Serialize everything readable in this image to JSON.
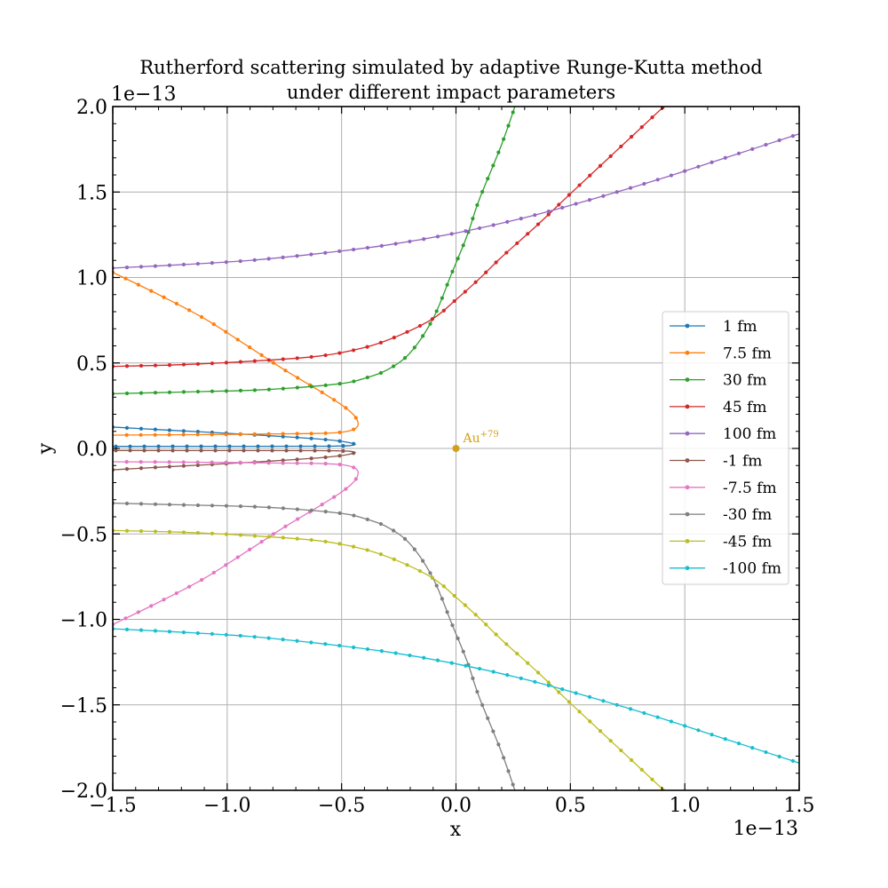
{
  "chart_data": {
    "type": "line",
    "title_lines": [
      "Rutherford scattering simulated by adaptive Runge-Kutta method",
      "under different impact parameters"
    ],
    "xlabel": "x",
    "ylabel": "y",
    "x_offset_text": "1e−13",
    "y_offset_text": "1e−13",
    "xlim": [
      -1.5,
      1.5
    ],
    "ylim": [
      -2.0,
      2.0
    ],
    "xticks": [
      -1.5,
      -1.0,
      -0.5,
      0.0,
      0.5,
      1.0,
      1.5
    ],
    "xtick_labels": [
      "−1.5",
      "−1.0",
      "−0.5",
      "0.0",
      "0.5",
      "1.0",
      "1.5"
    ],
    "yticks": [
      -2.0,
      -1.5,
      -1.0,
      -0.5,
      0.0,
      0.5,
      1.0,
      1.5,
      2.0
    ],
    "ytick_labels": [
      "−2.0",
      "−1.5",
      "−1.0",
      "−0.5",
      "0.0",
      "0.5",
      "1.0",
      "1.5",
      "2.0"
    ],
    "grid": true,
    "legend_position": "center-right",
    "nucleus": {
      "x": 0.0,
      "y": 0.0,
      "label": "Au",
      "superscript": "+79",
      "color": "#d4a017"
    },
    "series": [
      {
        "name": "1 fm",
        "color": "#1f77b4",
        "points": [
          [
            -1.5,
            0.125
          ],
          [
            -1.3,
            0.11
          ],
          [
            -1.1,
            0.096
          ],
          [
            -0.9,
            0.081
          ],
          [
            -0.75,
            0.069
          ],
          [
            -0.6,
            0.055
          ],
          [
            -0.52,
            0.045
          ],
          [
            -0.47,
            0.035
          ],
          [
            -0.45,
            0.028
          ],
          [
            -0.44,
            0.024
          ],
          [
            -0.45,
            0.019
          ],
          [
            -0.47,
            0.016
          ],
          [
            -0.52,
            0.014
          ],
          [
            -0.6,
            0.013
          ],
          [
            -0.9,
            0.0125
          ],
          [
            -1.5,
            0.012
          ]
        ]
      },
      {
        "name": "7.5 fm",
        "color": "#ff7f0e",
        "points": [
          [
            -1.5,
            1.03
          ],
          [
            -1.3,
            0.9
          ],
          [
            -1.1,
            0.76
          ],
          [
            -0.9,
            0.59
          ],
          [
            -0.75,
            0.46
          ],
          [
            -0.6,
            0.34
          ],
          [
            -0.5,
            0.255
          ],
          [
            -0.45,
            0.2
          ],
          [
            -0.43,
            0.16
          ],
          [
            -0.43,
            0.13
          ],
          [
            -0.45,
            0.11
          ],
          [
            -0.5,
            0.095
          ],
          [
            -0.6,
            0.088
          ],
          [
            -0.8,
            0.085
          ],
          [
            -1.0,
            0.082
          ],
          [
            -1.5,
            0.078
          ]
        ]
      },
      {
        "name": "30 fm",
        "color": "#2ca02c",
        "points": [
          [
            -1.5,
            0.32
          ],
          [
            -1.2,
            0.33
          ],
          [
            -0.9,
            0.34
          ],
          [
            -0.7,
            0.355
          ],
          [
            -0.5,
            0.38
          ],
          [
            -0.4,
            0.41
          ],
          [
            -0.3,
            0.46
          ],
          [
            -0.2,
            0.56
          ],
          [
            -0.1,
            0.76
          ],
          [
            -0.02,
            1.02
          ],
          [
            0.05,
            1.25
          ],
          [
            0.1,
            1.45
          ],
          [
            0.2,
            1.78
          ],
          [
            0.27,
            2.05
          ]
        ]
      },
      {
        "name": "45 fm",
        "color": "#d62728",
        "points": [
          [
            -1.5,
            0.48
          ],
          [
            -1.2,
            0.49
          ],
          [
            -0.9,
            0.51
          ],
          [
            -0.6,
            0.54
          ],
          [
            -0.4,
            0.59
          ],
          [
            -0.25,
            0.66
          ],
          [
            -0.1,
            0.76
          ],
          [
            0.0,
            0.87
          ],
          [
            0.1,
            0.99
          ],
          [
            0.2,
            1.12
          ],
          [
            0.35,
            1.3
          ],
          [
            0.5,
            1.49
          ],
          [
            0.7,
            1.74
          ],
          [
            0.9,
            1.99
          ],
          [
            0.95,
            2.06
          ]
        ]
      },
      {
        "name": "100 fm",
        "color": "#9467bd",
        "points": [
          [
            -1.5,
            1.055
          ],
          [
            -1.2,
            1.075
          ],
          [
            -0.9,
            1.1
          ],
          [
            -0.6,
            1.14
          ],
          [
            -0.3,
            1.19
          ],
          [
            0.0,
            1.26
          ],
          [
            0.3,
            1.35
          ],
          [
            0.6,
            1.46
          ],
          [
            0.9,
            1.58
          ],
          [
            1.2,
            1.71
          ],
          [
            1.5,
            1.84
          ]
        ]
      },
      {
        "name": "-1 fm",
        "color": "#8c564b",
        "points": [
          [
            -1.5,
            -0.125
          ],
          [
            -1.3,
            -0.11
          ],
          [
            -1.1,
            -0.096
          ],
          [
            -0.9,
            -0.081
          ],
          [
            -0.75,
            -0.069
          ],
          [
            -0.6,
            -0.055
          ],
          [
            -0.52,
            -0.045
          ],
          [
            -0.47,
            -0.035
          ],
          [
            -0.45,
            -0.028
          ],
          [
            -0.44,
            -0.024
          ],
          [
            -0.45,
            -0.019
          ],
          [
            -0.47,
            -0.016
          ],
          [
            -0.52,
            -0.014
          ],
          [
            -0.6,
            -0.013
          ],
          [
            -0.9,
            -0.0125
          ],
          [
            -1.5,
            -0.012
          ]
        ]
      },
      {
        "name": "-7.5 fm",
        "color": "#e377c2",
        "points": [
          [
            -1.5,
            -1.03
          ],
          [
            -1.3,
            -0.9
          ],
          [
            -1.1,
            -0.76
          ],
          [
            -0.9,
            -0.59
          ],
          [
            -0.75,
            -0.46
          ],
          [
            -0.6,
            -0.34
          ],
          [
            -0.5,
            -0.255
          ],
          [
            -0.45,
            -0.2
          ],
          [
            -0.43,
            -0.16
          ],
          [
            -0.43,
            -0.13
          ],
          [
            -0.45,
            -0.11
          ],
          [
            -0.5,
            -0.095
          ],
          [
            -0.6,
            -0.088
          ],
          [
            -0.8,
            -0.085
          ],
          [
            -1.0,
            -0.082
          ],
          [
            -1.5,
            -0.078
          ]
        ]
      },
      {
        "name": "-30 fm",
        "color": "#7f7f7f",
        "points": [
          [
            -1.5,
            -0.32
          ],
          [
            -1.2,
            -0.33
          ],
          [
            -0.9,
            -0.34
          ],
          [
            -0.7,
            -0.355
          ],
          [
            -0.5,
            -0.38
          ],
          [
            -0.4,
            -0.41
          ],
          [
            -0.3,
            -0.46
          ],
          [
            -0.2,
            -0.56
          ],
          [
            -0.1,
            -0.76
          ],
          [
            -0.02,
            -1.02
          ],
          [
            0.05,
            -1.25
          ],
          [
            0.1,
            -1.45
          ],
          [
            0.2,
            -1.78
          ],
          [
            0.27,
            -2.05
          ]
        ]
      },
      {
        "name": "-45 fm",
        "color": "#bcbd22",
        "points": [
          [
            -1.5,
            -0.48
          ],
          [
            -1.2,
            -0.49
          ],
          [
            -0.9,
            -0.51
          ],
          [
            -0.6,
            -0.54
          ],
          [
            -0.4,
            -0.59
          ],
          [
            -0.25,
            -0.66
          ],
          [
            -0.1,
            -0.76
          ],
          [
            0.0,
            -0.87
          ],
          [
            0.1,
            -0.99
          ],
          [
            0.2,
            -1.12
          ],
          [
            0.35,
            -1.3
          ],
          [
            0.5,
            -1.49
          ],
          [
            0.7,
            -1.74
          ],
          [
            0.9,
            -1.99
          ],
          [
            0.95,
            -2.06
          ]
        ]
      },
      {
        "name": "-100 fm",
        "color": "#17becf",
        "points": [
          [
            -1.5,
            -1.055
          ],
          [
            -1.2,
            -1.075
          ],
          [
            -0.9,
            -1.1
          ],
          [
            -0.6,
            -1.14
          ],
          [
            -0.3,
            -1.19
          ],
          [
            0.0,
            -1.26
          ],
          [
            0.3,
            -1.35
          ],
          [
            0.6,
            -1.46
          ],
          [
            0.9,
            -1.58
          ],
          [
            1.2,
            -1.71
          ],
          [
            1.5,
            -1.84
          ]
        ]
      }
    ]
  }
}
